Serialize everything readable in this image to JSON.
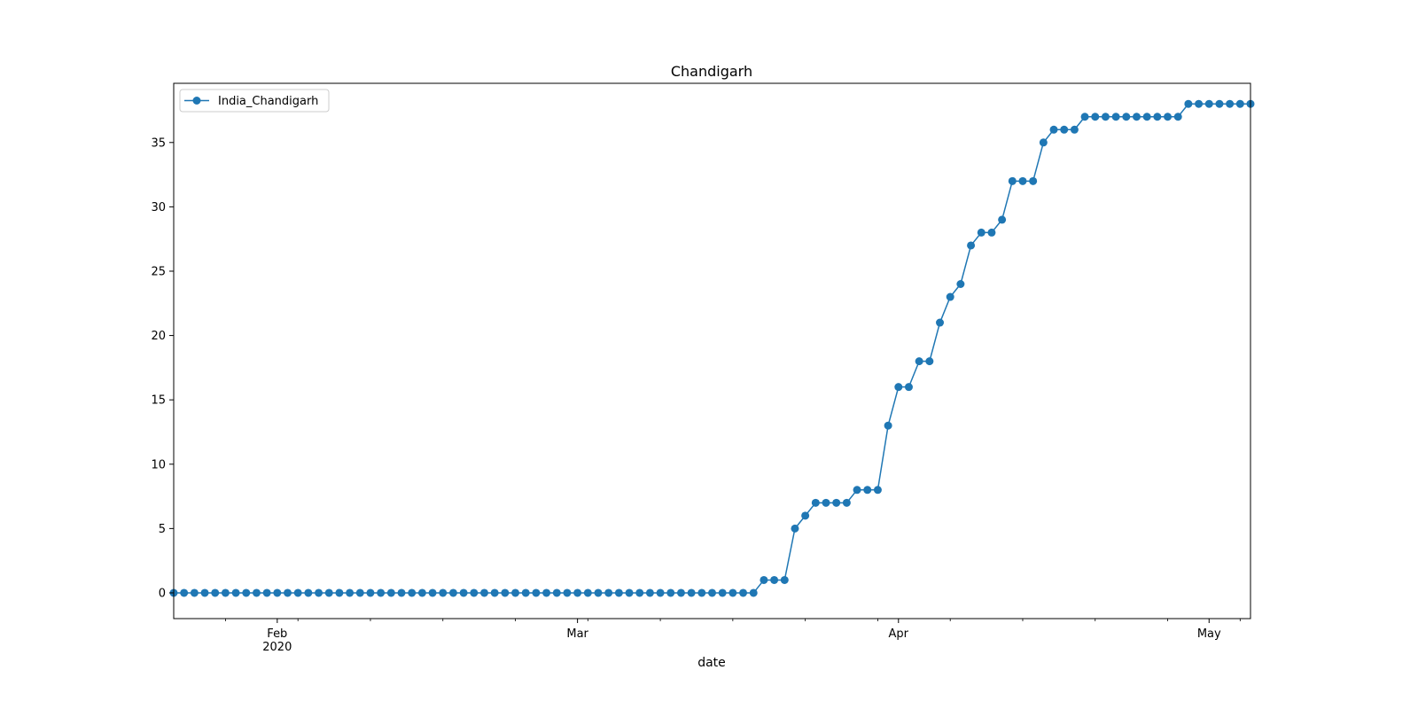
{
  "chart_data": {
    "type": "line",
    "title": "Chandigarh",
    "xlabel": "date",
    "ylabel": "",
    "x_start": "2020-01-22",
    "x_end": "2020-05-05",
    "ylim": [
      -2,
      39.6
    ],
    "y_ticks": [
      0,
      5,
      10,
      15,
      20,
      25,
      30,
      35
    ],
    "x_ticks": [
      {
        "date": "2020-02-01",
        "label": "Feb",
        "sublabel": "2020"
      },
      {
        "date": "2020-03-01",
        "label": "Mar",
        "sublabel": ""
      },
      {
        "date": "2020-04-01",
        "label": "Apr",
        "sublabel": ""
      },
      {
        "date": "2020-05-01",
        "label": "May",
        "sublabel": ""
      }
    ],
    "grid": false,
    "legend_position": "top-left",
    "series": [
      {
        "name": "India_Chandigarh",
        "color": "#1f77b4",
        "marker": "circle",
        "dates": [
          "2020-01-22",
          "2020-01-23",
          "2020-01-24",
          "2020-01-25",
          "2020-01-26",
          "2020-01-27",
          "2020-01-28",
          "2020-01-29",
          "2020-01-30",
          "2020-01-31",
          "2020-02-01",
          "2020-02-02",
          "2020-02-03",
          "2020-02-04",
          "2020-02-05",
          "2020-02-06",
          "2020-02-07",
          "2020-02-08",
          "2020-02-09",
          "2020-02-10",
          "2020-02-11",
          "2020-02-12",
          "2020-02-13",
          "2020-02-14",
          "2020-02-15",
          "2020-02-16",
          "2020-02-17",
          "2020-02-18",
          "2020-02-19",
          "2020-02-20",
          "2020-02-21",
          "2020-02-22",
          "2020-02-23",
          "2020-02-24",
          "2020-02-25",
          "2020-02-26",
          "2020-02-27",
          "2020-02-28",
          "2020-02-29",
          "2020-03-01",
          "2020-03-02",
          "2020-03-03",
          "2020-03-04",
          "2020-03-05",
          "2020-03-06",
          "2020-03-07",
          "2020-03-08",
          "2020-03-09",
          "2020-03-10",
          "2020-03-11",
          "2020-03-12",
          "2020-03-13",
          "2020-03-14",
          "2020-03-15",
          "2020-03-16",
          "2020-03-17",
          "2020-03-18",
          "2020-03-19",
          "2020-03-20",
          "2020-03-21",
          "2020-03-22",
          "2020-03-23",
          "2020-03-24",
          "2020-03-25",
          "2020-03-26",
          "2020-03-27",
          "2020-03-28",
          "2020-03-29",
          "2020-03-30",
          "2020-03-31",
          "2020-04-01",
          "2020-04-02",
          "2020-04-03",
          "2020-04-04",
          "2020-04-05",
          "2020-04-06",
          "2020-04-07",
          "2020-04-08",
          "2020-04-09",
          "2020-04-10",
          "2020-04-11",
          "2020-04-12",
          "2020-04-13",
          "2020-04-14",
          "2020-04-15",
          "2020-04-16",
          "2020-04-17",
          "2020-04-18",
          "2020-04-19",
          "2020-04-20",
          "2020-04-21",
          "2020-04-22",
          "2020-04-23",
          "2020-04-24",
          "2020-04-25",
          "2020-04-26",
          "2020-04-27",
          "2020-04-28",
          "2020-04-29",
          "2020-04-30",
          "2020-05-01",
          "2020-05-02",
          "2020-05-03",
          "2020-05-04",
          "2020-05-05"
        ],
        "values": [
          0,
          0,
          0,
          0,
          0,
          0,
          0,
          0,
          0,
          0,
          0,
          0,
          0,
          0,
          0,
          0,
          0,
          0,
          0,
          0,
          0,
          0,
          0,
          0,
          0,
          0,
          0,
          0,
          0,
          0,
          0,
          0,
          0,
          0,
          0,
          0,
          0,
          0,
          0,
          0,
          0,
          0,
          0,
          0,
          0,
          0,
          0,
          0,
          0,
          0,
          0,
          0,
          0,
          0,
          0,
          0,
          0,
          1,
          1,
          1,
          5,
          6,
          7,
          7,
          7,
          7,
          8,
          8,
          8,
          13,
          16,
          16,
          18,
          18,
          21,
          23,
          24,
          27,
          28,
          28,
          29,
          32,
          32,
          32,
          35,
          36,
          36,
          36,
          37,
          37,
          37,
          37,
          37,
          37,
          37,
          37,
          37,
          37,
          38,
          38,
          38,
          38,
          38,
          38,
          38
        ]
      }
    ]
  }
}
